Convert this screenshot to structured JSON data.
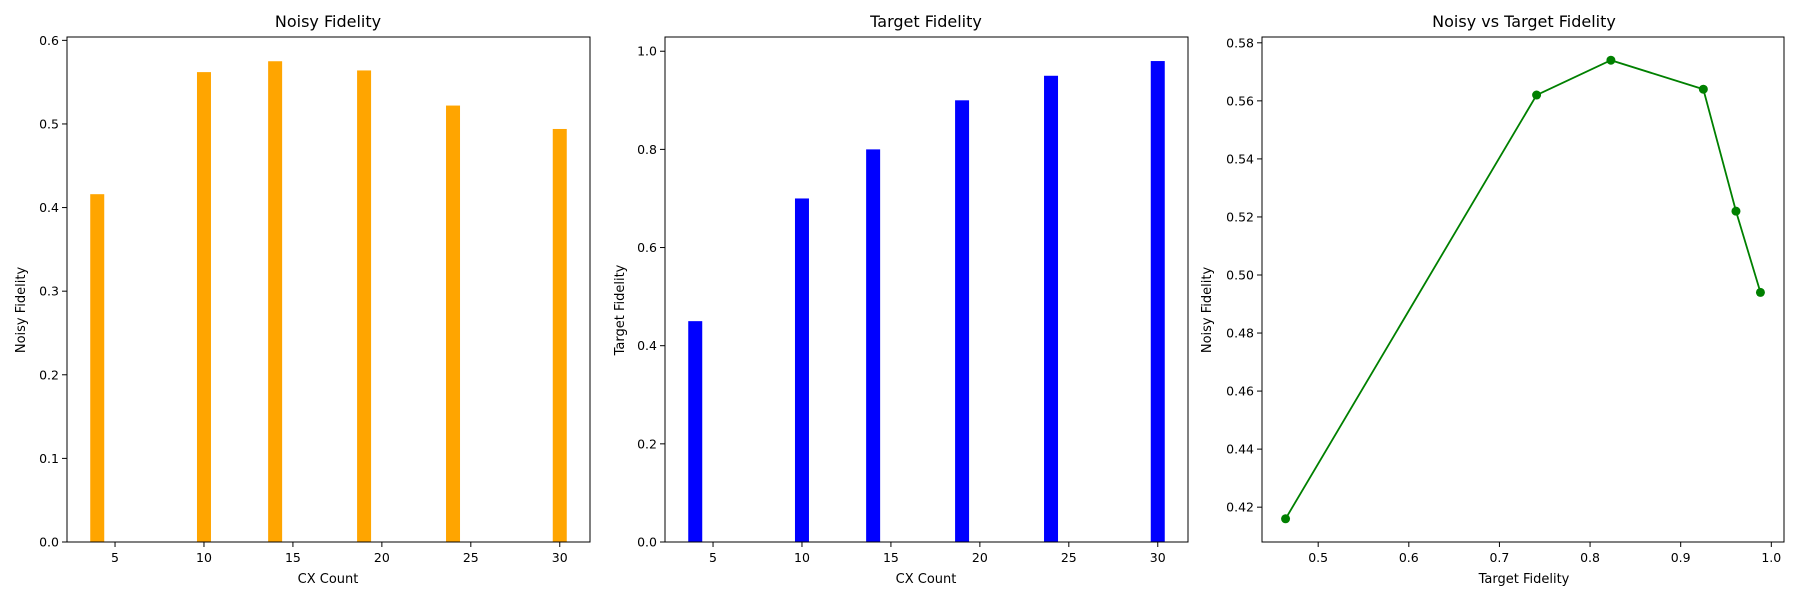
{
  "chart_data": [
    {
      "type": "bar",
      "title": "Noisy Fidelity",
      "xlabel": "CX Count",
      "ylabel": "Noisy Fidelity",
      "x": [
        4,
        10,
        14,
        19,
        24,
        30
      ],
      "values": [
        0.416,
        0.562,
        0.575,
        0.564,
        0.522,
        0.494
      ],
      "color": "#FFA500",
      "xlim": [
        2.3,
        31.7
      ],
      "ylim": [
        0,
        0.604
      ],
      "xticks": [
        5,
        10,
        15,
        20,
        25,
        30
      ],
      "xtick_labels": [
        "5",
        "10",
        "15",
        "20",
        "25",
        "30"
      ],
      "yticks": [
        0,
        0.1,
        0.2,
        0.3,
        0.4,
        0.5,
        0.6
      ],
      "ytick_labels": [
        "0.0",
        "0.1",
        "0.2",
        "0.3",
        "0.4",
        "0.5",
        "0.6"
      ],
      "grid": false
    },
    {
      "type": "bar",
      "title": "Target Fidelity",
      "xlabel": "CX Count",
      "ylabel": "Target Fidelity",
      "x": [
        4,
        10,
        14,
        19,
        24,
        30
      ],
      "values": [
        0.45,
        0.7,
        0.8,
        0.9,
        0.95,
        0.98
      ],
      "color": "#0000FF",
      "xlim": [
        2.3,
        31.7
      ],
      "ylim": [
        0,
        1.029
      ],
      "xticks": [
        5,
        10,
        15,
        20,
        25,
        30
      ],
      "xtick_labels": [
        "5",
        "10",
        "15",
        "20",
        "25",
        "30"
      ],
      "yticks": [
        0,
        0.2,
        0.4,
        0.6,
        0.8,
        1.0
      ],
      "ytick_labels": [
        "0.0",
        "0.2",
        "0.4",
        "0.6",
        "0.8",
        "1.0"
      ],
      "grid": false
    },
    {
      "type": "line",
      "title": "Noisy vs Target Fidelity",
      "xlabel": "Target Fidelity",
      "ylabel": "Noisy Fidelity",
      "x": [
        0.464,
        0.741,
        0.823,
        0.925,
        0.961,
        0.988
      ],
      "y": [
        0.416,
        0.562,
        0.574,
        0.564,
        0.522,
        0.494
      ],
      "color": "#008000",
      "marker": "circle",
      "xlim": [
        0.438,
        1.014
      ],
      "ylim": [
        0.408,
        0.582
      ],
      "xticks": [
        0.5,
        0.6,
        0.7,
        0.8,
        0.9,
        1.0
      ],
      "xtick_labels": [
        "0.5",
        "0.6",
        "0.7",
        "0.8",
        "0.9",
        "1.0"
      ],
      "yticks": [
        0.42,
        0.44,
        0.46,
        0.48,
        0.5,
        0.52,
        0.54,
        0.56,
        0.58
      ],
      "ytick_labels": [
        "0.42",
        "0.44",
        "0.46",
        "0.48",
        "0.50",
        "0.52",
        "0.54",
        "0.56",
        "0.58"
      ],
      "grid": false
    }
  ]
}
